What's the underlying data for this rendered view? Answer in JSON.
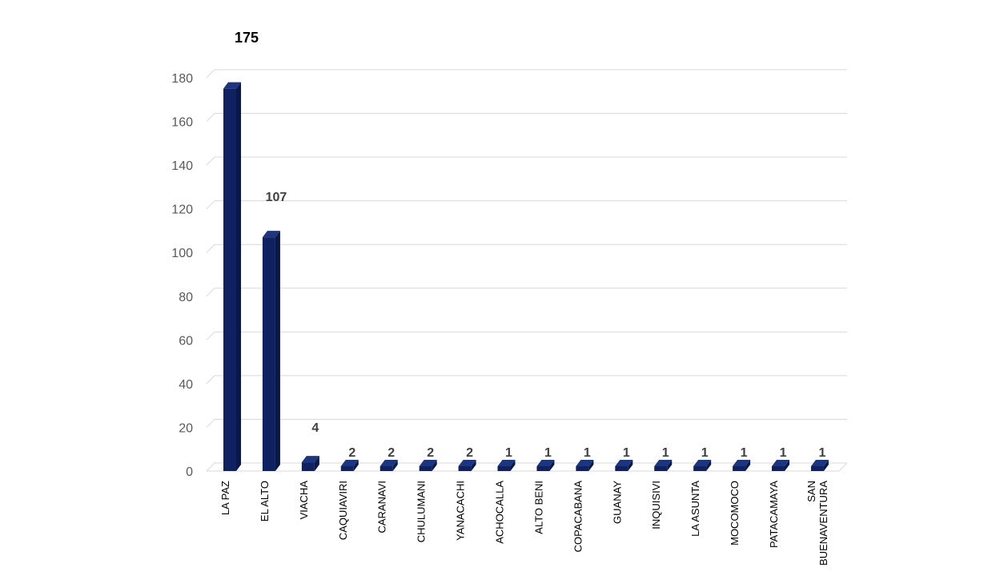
{
  "chart_data": {
    "type": "bar",
    "title": "",
    "xlabel": "",
    "ylabel": "",
    "ylim": [
      0,
      180
    ],
    "yticks": [
      0,
      20,
      40,
      60,
      80,
      100,
      120,
      140,
      160,
      180
    ],
    "grid": true,
    "legend": "none",
    "bar_color": "#0f2160",
    "categories": [
      "LA PAZ",
      "EL ALTO",
      "VIACHA",
      "CAQUIAVIRI",
      "CARANAVI",
      "CHULUMANI",
      "YANACACHI",
      "ACHOCALLA",
      "ALTO BENI",
      "COPACABANA",
      "GUANAY",
      "INQUISIVI",
      "LA ASUNTA",
      "MOCOMOCO",
      "PATACAMAYA",
      "SAN BUENAVENTURA"
    ],
    "values": [
      175,
      107,
      4,
      2,
      2,
      2,
      2,
      1,
      1,
      1,
      1,
      1,
      1,
      1,
      1,
      1
    ],
    "data_labels": [
      "175",
      "107",
      "4",
      "2",
      "2",
      "2",
      "2",
      "1",
      "1",
      "1",
      "1",
      "1",
      "1",
      "1",
      "1",
      "1"
    ]
  }
}
